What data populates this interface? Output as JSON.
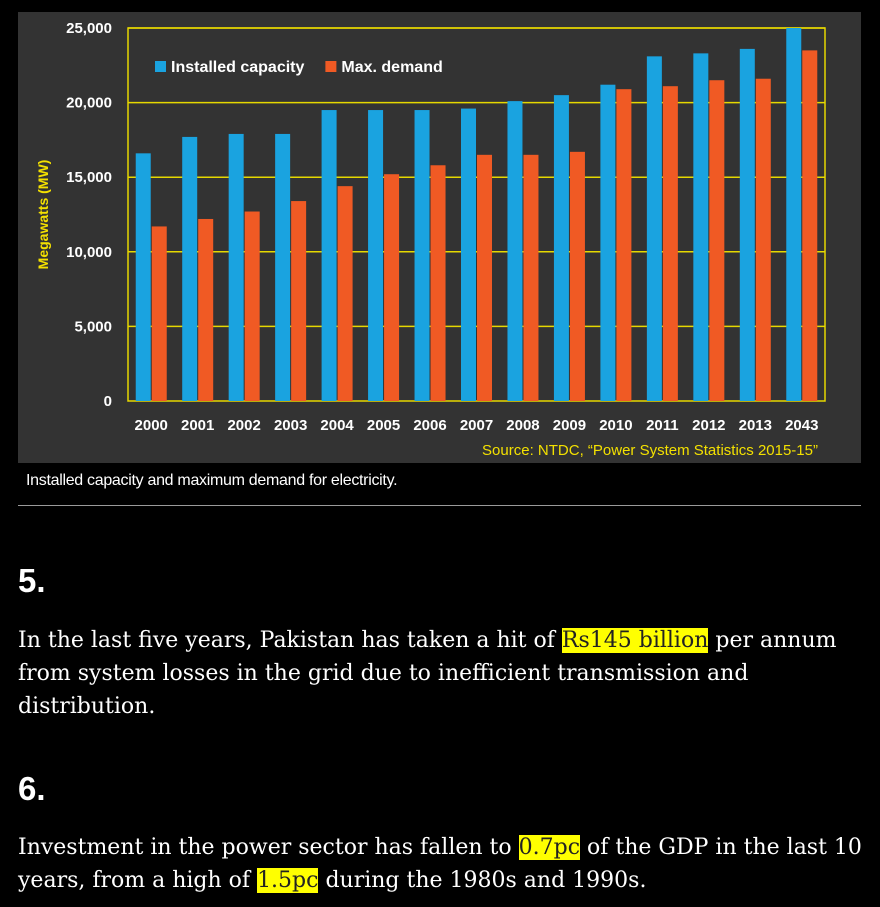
{
  "chart_data": {
    "type": "bar",
    "categories": [
      "2000",
      "2001",
      "2002",
      "2003",
      "2004",
      "2005",
      "2006",
      "2007",
      "2008",
      "2009",
      "2010",
      "2011",
      "2012",
      "2013",
      "2043"
    ],
    "series": [
      {
        "name": "Installed capacity",
        "color": "#1aa3e0",
        "values": [
          16600,
          17700,
          17900,
          17900,
          19500,
          19500,
          19500,
          19600,
          20100,
          20500,
          21200,
          23100,
          23300,
          23600,
          25000
        ]
      },
      {
        "name": "Max. demand",
        "color": "#f05a24",
        "values": [
          11700,
          12200,
          12700,
          13400,
          14400,
          15200,
          15800,
          16500,
          16500,
          16700,
          20900,
          21100,
          21500,
          21600,
          23500
        ]
      }
    ],
    "ylabel": "Megawatts (MW)",
    "ylim": [
      0,
      25000
    ],
    "yticks": [
      0,
      5000,
      10000,
      15000,
      20000,
      25000
    ],
    "ytick_labels": [
      "0",
      "5,000",
      "10,000",
      "15,000",
      "20,000",
      "25,000"
    ],
    "source": "Source: NTDC, “Power System Statistics 2015-15”",
    "legend_position": "top-left",
    "grid": true,
    "grid_color": "#e6d800"
  },
  "caption": "Installed capacity and maximum demand for electricity.",
  "sections": [
    {
      "number": "5.",
      "text_before": "In the last five years, Pakistan has taken a hit of ",
      "highlight": "Rs145 billion",
      "text_after": " per annum from system losses in the grid due to inefficient transmission and distribution."
    },
    {
      "number": "6.",
      "text_before": "Investment in the power sector has fallen to ",
      "highlight": "0.7pc",
      "text_middle": " of the GDP in the last 10 years, from a high of ",
      "highlight2": "1.5pc",
      "text_after": " during the 1980s and 1990s."
    }
  ]
}
